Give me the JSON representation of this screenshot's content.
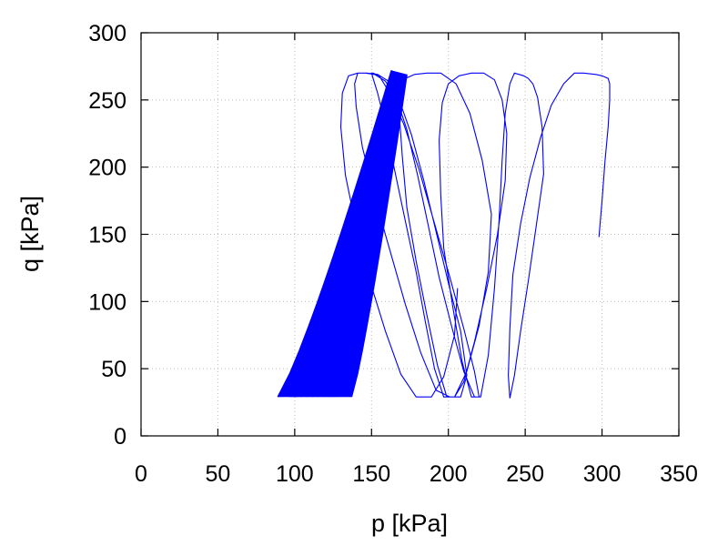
{
  "chart_data": {
    "type": "line",
    "title": "",
    "xlabel": "p [kPa]",
    "ylabel": "q [kPa]",
    "xlim": [
      0,
      350
    ],
    "ylim": [
      0,
      300
    ],
    "xticks": [
      0,
      50,
      100,
      150,
      200,
      250,
      300,
      350
    ],
    "yticks": [
      0,
      50,
      100,
      150,
      200,
      250,
      300
    ],
    "x_tick_labels": [
      "0",
      "50",
      "100",
      "150",
      "200",
      "250",
      "300",
      "350"
    ],
    "y_tick_labels": [
      "0",
      "50",
      "100",
      "150",
      "200",
      "250",
      "300"
    ],
    "grid": true,
    "legend": "none",
    "series_color": "#0000ff",
    "series": [
      {
        "x": [
          298,
          300,
          302,
          304,
          305,
          305,
          304,
          300,
          296,
          288,
          282,
          275,
          267,
          260,
          253,
          247,
          242,
          240,
          239,
          240,
          243,
          247,
          252,
          257,
          262,
          261,
          258,
          255,
          252,
          249,
          246,
          243,
          240,
          237,
          235,
          233,
          230,
          226,
          221,
          215,
          209,
          203,
          197,
          195,
          194,
          196,
          200,
          207,
          215,
          223,
          230,
          235,
          238,
          237,
          232,
          225,
          217,
          210,
          204,
          199,
          193,
          186,
          179,
          173,
          170,
          168,
          169,
          172,
          178,
          186,
          195,
          205,
          214,
          222,
          228,
          226,
          220,
          212,
          204,
          197,
          191,
          185,
          179,
          172,
          165,
          159,
          154,
          151,
          150,
          151,
          155,
          162,
          171,
          181,
          191,
          201,
          210,
          217,
          220,
          217,
          210,
          202,
          194,
          187,
          180,
          173,
          166,
          159,
          152,
          146,
          141,
          139,
          140,
          144,
          152,
          162,
          172,
          182,
          192,
          201,
          208,
          212,
          208,
          200,
          192,
          184,
          176,
          168,
          161,
          154,
          147,
          141,
          135,
          131,
          130,
          133,
          140,
          149,
          159,
          169,
          179,
          189,
          197,
          204,
          206
        ],
        "y": [
          148,
          175,
          205,
          230,
          250,
          262,
          266,
          268,
          269,
          270,
          270,
          262,
          246,
          222,
          192,
          158,
          120,
          80,
          45,
          28,
          45,
          78,
          115,
          155,
          195,
          230,
          252,
          262,
          266,
          268,
          269,
          270,
          262,
          240,
          205,
          160,
          110,
          60,
          29,
          29,
          55,
          95,
          140,
          180,
          220,
          248,
          262,
          268,
          270,
          270,
          265,
          250,
          225,
          190,
          150,
          110,
          70,
          40,
          29,
          29,
          52,
          90,
          130,
          170,
          208,
          240,
          258,
          266,
          269,
          270,
          270,
          262,
          240,
          205,
          165,
          122,
          82,
          48,
          29,
          29,
          50,
          85,
          122,
          160,
          198,
          232,
          255,
          266,
          270,
          270,
          268,
          255,
          232,
          198,
          158,
          118,
          80,
          48,
          29,
          29,
          48,
          82,
          118,
          156,
          194,
          228,
          252,
          264,
          269,
          270,
          270,
          262,
          245,
          215,
          178,
          138,
          98,
          62,
          34,
          29,
          29,
          45,
          78,
          114,
          152,
          190,
          224,
          250,
          264,
          269,
          270,
          270,
          268,
          255,
          230,
          194,
          155,
          115,
          78,
          46,
          29,
          29,
          44,
          75,
          110
        ]
      }
    ]
  }
}
